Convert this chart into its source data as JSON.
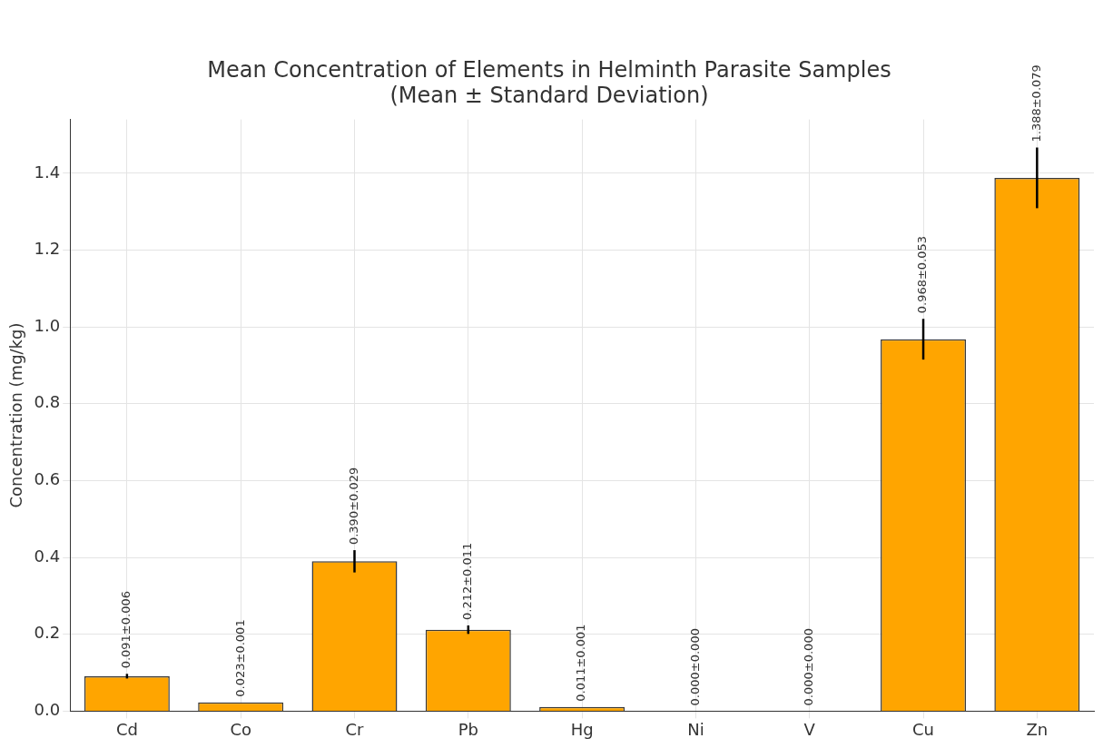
{
  "chart_data": {
    "type": "bar",
    "title": "Mean Concentration of Elements in Helminth Parasite Samples",
    "subtitle": "(Mean ± Standard Deviation)",
    "ylabel": "Concentration (mg/kg)",
    "categories": [
      "Cd",
      "Co",
      "Cr",
      "Pb",
      "Hg",
      "Ni",
      "V",
      "Cu",
      "Zn"
    ],
    "values": [
      0.091,
      0.023,
      0.39,
      0.212,
      0.011,
      0.0,
      0.0,
      0.968,
      1.388
    ],
    "errors": [
      0.006,
      null,
      0.029,
      0.011,
      null,
      0.0,
      0.0,
      0.053,
      0.079
    ],
    "value_labels": [
      "0.091±0.006",
      "0.023±0.001",
      "0.390±0.029",
      "0.212±0.011",
      "0.011±0.001",
      "0.000±0.000",
      "0.000±0.000",
      "0.968±0.053",
      "1.388±0.079"
    ],
    "color": "#ffa500",
    "ylim": [
      0,
      1.54
    ],
    "yticks": [
      {
        "value": 0,
        "label": "0.0"
      },
      0.2,
      0.4,
      0.6,
      0.8,
      {
        "value": 1,
        "label": "1.0"
      },
      1.2,
      1.4
    ],
    "grid": true
  }
}
